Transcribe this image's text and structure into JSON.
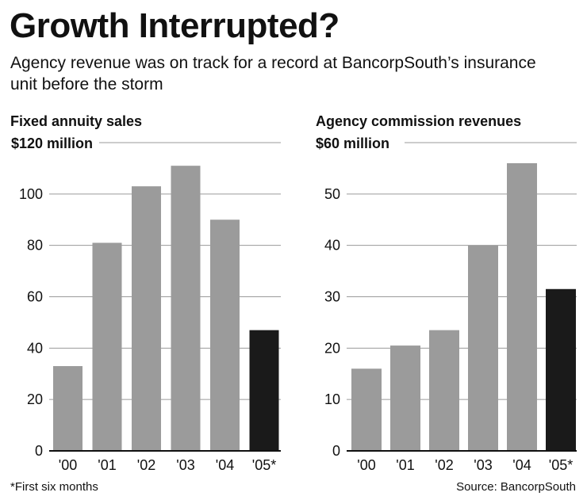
{
  "header": {
    "title": "Growth Interrupted?",
    "subtitle": "Agency revenue was on track for a record at BancorpSouth’s insurance unit before the storm"
  },
  "footnote": "*First six months",
  "source": "Source: BancorpSouth",
  "colors": {
    "bar": "#9b9b9b",
    "highlight": "#1a1a1a",
    "grid": "#9a9a9a",
    "text": "#111111"
  },
  "chart_data": [
    {
      "type": "bar",
      "title": "Fixed annuity sales",
      "top_label": "$120 million",
      "categories": [
        "'00",
        "'01",
        "'02",
        "'03",
        "'04",
        "'05*"
      ],
      "values": [
        33,
        81,
        103,
        111,
        90,
        47
      ],
      "highlight_index": 5,
      "yticks": [
        0,
        20,
        40,
        60,
        80,
        100
      ],
      "ylim": [
        0,
        120
      ],
      "grid": true
    },
    {
      "type": "bar",
      "title": "Agency commission revenues",
      "top_label": "$60 million",
      "categories": [
        "'00",
        "'01",
        "'02",
        "'03",
        "'04",
        "'05*"
      ],
      "values": [
        16,
        20.5,
        23.5,
        40,
        56,
        31.5
      ],
      "highlight_index": 5,
      "yticks": [
        0,
        10,
        20,
        30,
        40,
        50
      ],
      "ylim": [
        0,
        60
      ],
      "grid": true
    }
  ]
}
